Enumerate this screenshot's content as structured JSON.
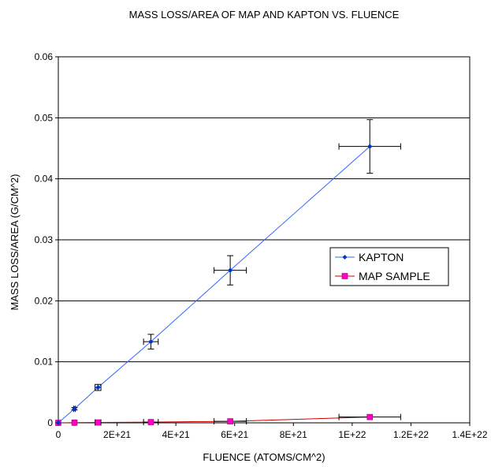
{
  "chart_data": {
    "type": "scatter",
    "title": "MASS LOSS/AREA OF MAP AND KAPTON VS. FLUENCE",
    "xlabel": "FLUENCE (ATOMS/CM^2)",
    "ylabel": "MASS LOSS/AREA (G/CM^2)",
    "xlim": [
      0,
      1.4e+22
    ],
    "ylim": [
      0,
      0.06
    ],
    "x_ticks": [
      0,
      2e+21,
      4e+21,
      6e+21,
      8e+21,
      1e+22,
      1.2e+22,
      1.4e+22
    ],
    "x_tick_labels": [
      "0",
      "2E+21",
      "4E+21",
      "6E+21",
      "8E+21",
      "1E+22",
      "1.2E+22",
      "1.4E+22"
    ],
    "y_ticks": [
      0,
      0.01,
      0.02,
      0.03,
      0.04,
      0.05,
      0.06
    ],
    "y_tick_labels": [
      "0",
      "0.01",
      "0.02",
      "0.03",
      "0.04",
      "0.05",
      "0.06"
    ],
    "grid": "horizontal",
    "legend_position": "right",
    "series": [
      {
        "name": "KAPTON",
        "color": "#0033cc",
        "line_color": "#3366ff",
        "marker": "diamond",
        "points": [
          {
            "x": 0,
            "y": 0,
            "xerr": 0,
            "yerr": 0
          },
          {
            "x": 5.5e+20,
            "y": 0.0023,
            "xerr": 3e+19,
            "yerr": 0.0002
          },
          {
            "x": 1.35e+21,
            "y": 0.0058,
            "xerr": 1e+20,
            "yerr": 0.0005
          },
          {
            "x": 3.15e+21,
            "y": 0.0133,
            "xerr": 2.5e+20,
            "yerr": 0.0012
          },
          {
            "x": 5.85e+21,
            "y": 0.025,
            "xerr": 5.5e+20,
            "yerr": 0.0024
          },
          {
            "x": 1.06e+22,
            "y": 0.0453,
            "xerr": 1.05e+21,
            "yerr": 0.0044
          }
        ]
      },
      {
        "name": "MAP SAMPLE",
        "color": "#ff00cc",
        "line_color": "#cc0000",
        "marker": "square",
        "points": [
          {
            "x": 0,
            "y": 0,
            "xerr": 0,
            "yerr": 0
          },
          {
            "x": 5.5e+20,
            "y": 3e-05,
            "xerr": 3e+19,
            "yerr": 0
          },
          {
            "x": 1.35e+21,
            "y": 6e-05,
            "xerr": 1e+20,
            "yerr": 0
          },
          {
            "x": 3.15e+21,
            "y": 0.00012,
            "xerr": 2.5e+20,
            "yerr": 0
          },
          {
            "x": 5.85e+21,
            "y": 0.00025,
            "xerr": 5.5e+20,
            "yerr": 0
          },
          {
            "x": 1.06e+22,
            "y": 0.00095,
            "xerr": 1.05e+21,
            "yerr": 0
          }
        ]
      }
    ]
  }
}
